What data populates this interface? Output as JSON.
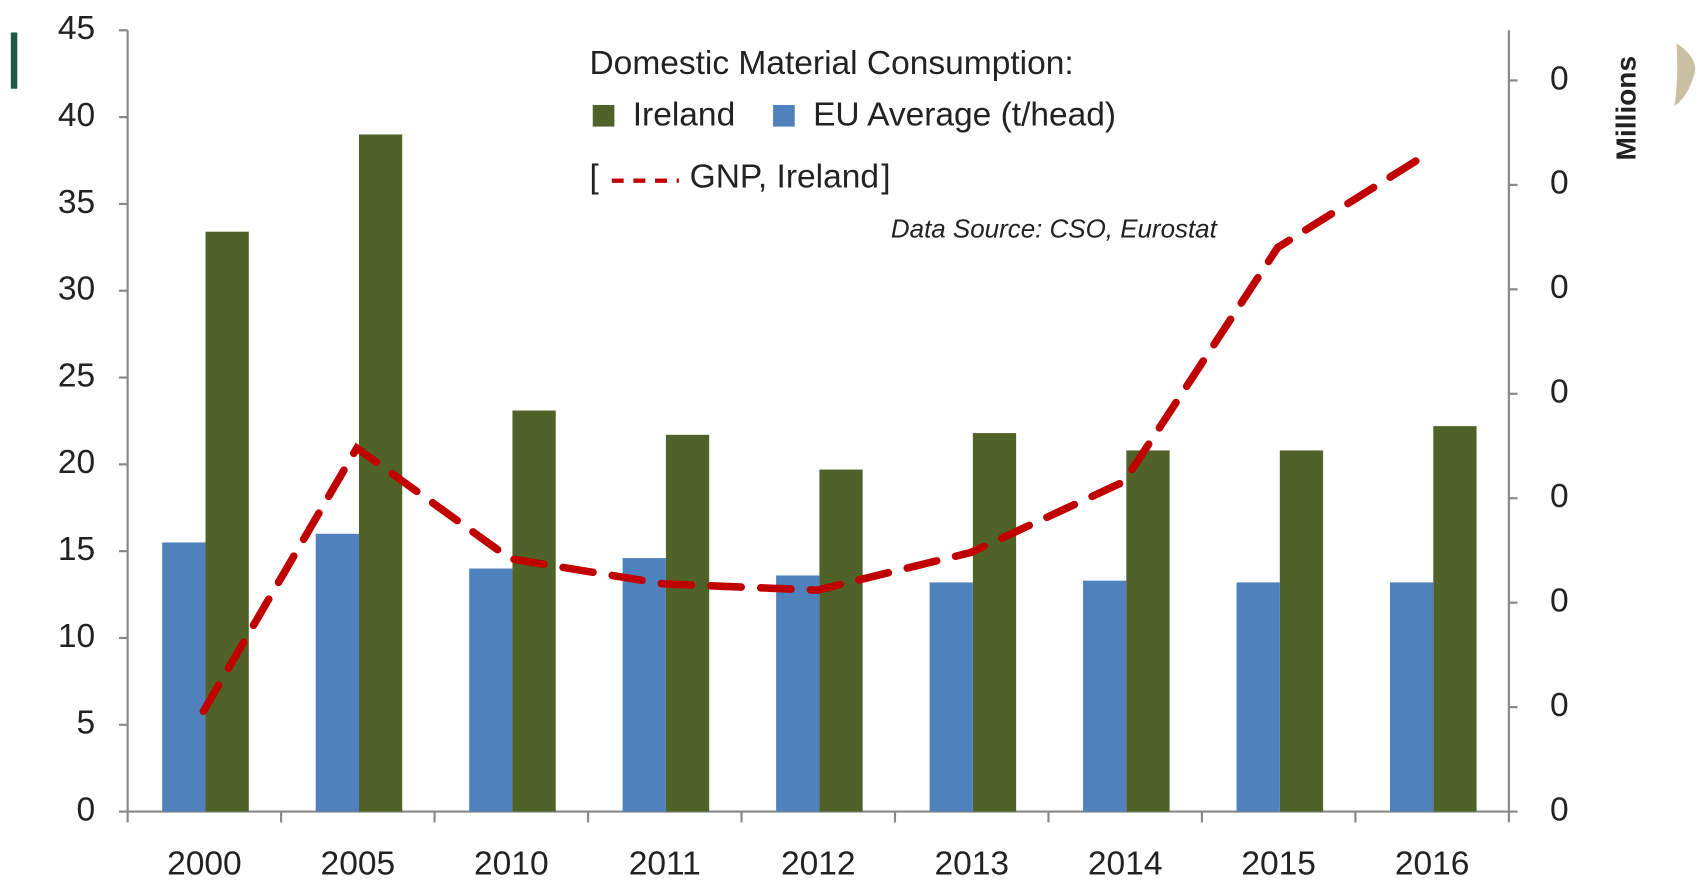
{
  "chart_data": {
    "type": "bar",
    "legend_title": "Domestic Material Consumption:",
    "legend_open": "[",
    "legend_close": "]",
    "annotation": "Data Source: CSO, Eurostat",
    "y2_label": "Millions",
    "categories": [
      "2000",
      "2005",
      "2010",
      "2011",
      "2012",
      "2013",
      "2014",
      "2015",
      "2016"
    ],
    "series": [
      {
        "name": "Ireland",
        "color": "#4f6228",
        "values": [
          33.4,
          39,
          23.1,
          21.7,
          19.7,
          21.8,
          20.8,
          20.8,
          22.2
        ]
      },
      {
        "name": "EU Average (t/head)",
        "color": "#4f81bd",
        "values": [
          15.5,
          16,
          14,
          14.6,
          13.6,
          13.2,
          13.3,
          13.2,
          13.2
        ]
      },
      {
        "name": "GNP, Ireland",
        "type": "line",
        "axis": "y2",
        "color": "#c00000",
        "dashed": true,
        "values": [
          0.048,
          0.174,
          0.121,
          0.109,
          0.106,
          0.124,
          0.158,
          0.27,
          0.316
        ]
      }
    ],
    "ylim": [
      0,
      45
    ],
    "yticks": [
      0,
      5,
      10,
      15,
      20,
      25,
      30,
      35,
      40,
      45
    ],
    "y2lim": [
      0,
      0.374
    ],
    "y2ticks": [
      {
        "value": 0,
        "label": "0"
      },
      {
        "value": 0.05,
        "label": "0"
      },
      {
        "value": 0.1,
        "label": "0"
      },
      {
        "value": 0.15,
        "label": "0"
      },
      {
        "value": 0.2,
        "label": "0"
      },
      {
        "value": 0.25,
        "label": "0"
      },
      {
        "value": 0.3,
        "label": "0"
      },
      {
        "value": 0.35,
        "label": "0"
      }
    ],
    "grid": false
  }
}
